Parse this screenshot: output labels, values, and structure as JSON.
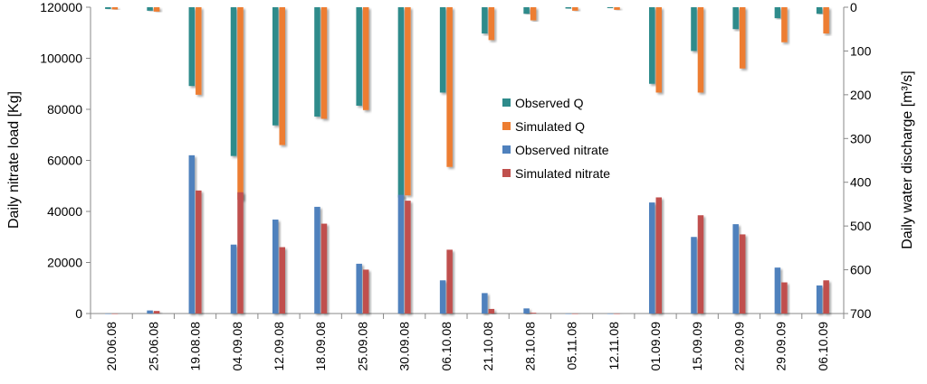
{
  "chart_data": {
    "type": "bar",
    "title": "",
    "xlabel": "",
    "ylabel": "Daily nitrate load [Kg]",
    "y2label": "Daily water discharge [m³/s]",
    "ylim": [
      0,
      120000
    ],
    "y2lim": [
      0,
      700
    ],
    "y2_inverted": true,
    "yticks": [
      "0",
      "20000",
      "40000",
      "60000",
      "80000",
      "100000",
      "120000"
    ],
    "y2ticks": [
      "0",
      "100",
      "200",
      "300",
      "400",
      "500",
      "600",
      "700"
    ],
    "categories": [
      "20.06.08",
      "25.06.08",
      "19.08.08",
      "04.09.08",
      "12.09.08",
      "18.09.08",
      "25.09.08",
      "30.09.08",
      "06.10.08",
      "21.10.08",
      "28.10.08",
      "05.11.08",
      "12.11.08",
      "01.09.09",
      "15.09.09",
      "22.09.09",
      "29.09.09",
      "06.10.09"
    ],
    "legend_position": "center",
    "series": [
      {
        "name": "Observed Q",
        "axis": "right",
        "color": "#2e8b8b",
        "values": [
          4,
          8,
          180,
          340,
          270,
          250,
          225,
          435,
          195,
          60,
          15,
          3,
          2,
          175,
          100,
          50,
          25,
          15
        ]
      },
      {
        "name": "Simulated Q",
        "axis": "right",
        "color": "#ed7d31",
        "values": [
          5,
          10,
          200,
          440,
          315,
          255,
          235,
          430,
          365,
          75,
          30,
          8,
          6,
          195,
          195,
          140,
          80,
          60
        ]
      },
      {
        "name": "Observed nitrate",
        "axis": "left",
        "color": "#4f81bd",
        "values": [
          0,
          1200,
          62000,
          27000,
          36800,
          41800,
          19500,
          46500,
          13000,
          8000,
          2000,
          0,
          0,
          43500,
          30000,
          35000,
          18000,
          11000
        ]
      },
      {
        "name": "Simulated nitrate",
        "axis": "left",
        "color": "#c0504d",
        "values": [
          0,
          1000,
          48200,
          47500,
          26000,
          35200,
          17200,
          44200,
          25000,
          1800,
          300,
          0,
          0,
          45500,
          38500,
          31000,
          12200,
          13000
        ]
      }
    ]
  }
}
